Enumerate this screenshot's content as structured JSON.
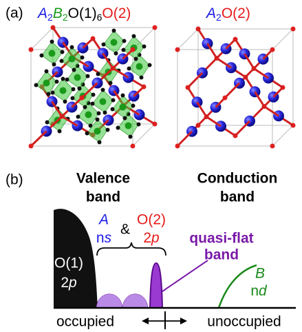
{
  "panel_a": {
    "label": "(a)",
    "left_formula": {
      "parts": [
        "A",
        "2",
        "B",
        "2",
        "O(1)",
        "6",
        "O(2)"
      ]
    },
    "right_formula": {
      "parts": [
        "A",
        "2",
        "O(2)"
      ]
    }
  },
  "panel_b": {
    "label": "(b)",
    "valence_band": [
      "Valence",
      "band"
    ],
    "conduction_band": [
      "Conduction",
      "band"
    ],
    "o1_label": {
      "name": "O(1)",
      "number": "2",
      "orbital": "p"
    },
    "a_label": {
      "name": "A",
      "number": "n",
      "orbital": "s"
    },
    "ampersand": "&",
    "o2_label": {
      "name": "O(2)",
      "number": "2",
      "orbital": "p"
    },
    "quasi_flat_band": [
      "quasi-flat",
      "band"
    ],
    "b_label": {
      "name": "B",
      "number": "n",
      "orbital": "d"
    },
    "occupied": "occupied",
    "unoccupied": "unoccupied"
  }
}
